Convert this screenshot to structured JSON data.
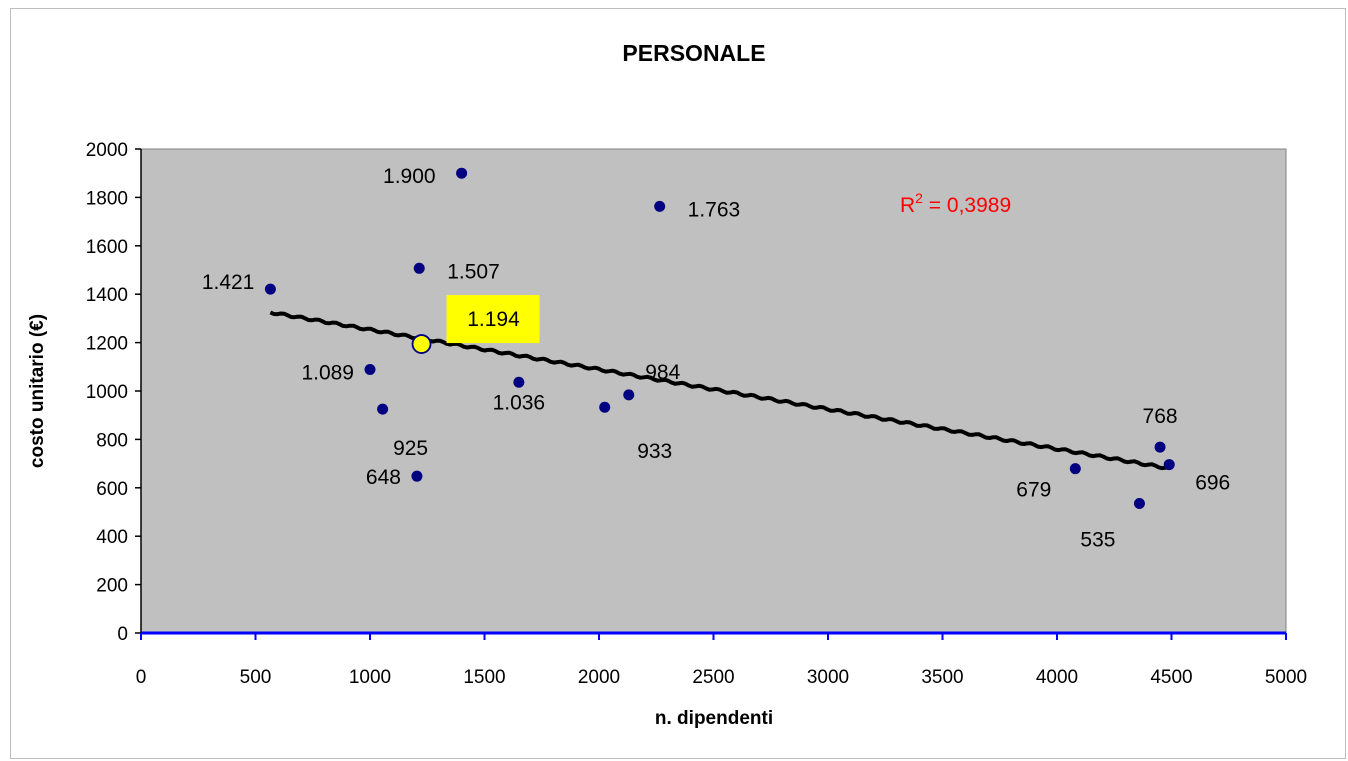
{
  "chart_data": {
    "type": "scatter",
    "title": "PERSONALE",
    "xlabel": "n. dipendenti",
    "ylabel": "costo unitario (€)",
    "xlim": [
      0,
      5000
    ],
    "ylim": [
      0,
      2000
    ],
    "x_ticks": [
      "0",
      "500",
      "1000",
      "1500",
      "2000",
      "2500",
      "3000",
      "3500",
      "4000",
      "4500",
      "5000"
    ],
    "y_ticks": [
      "0",
      "200",
      "400",
      "600",
      "800",
      "1000",
      "1200",
      "1400",
      "1600",
      "1800",
      "2000"
    ],
    "grid": false,
    "plot_background": "#c0c0c0",
    "marker_color": "#000080",
    "trend_color": "#000000",
    "x_axis_color": "#0000ff",
    "points": [
      {
        "x": 565,
        "y": 1421,
        "label": "1.421"
      },
      {
        "x": 1400,
        "y": 1900,
        "label": "1.900"
      },
      {
        "x": 2265,
        "y": 1763,
        "label": "1.763"
      },
      {
        "x": 1215,
        "y": 1507,
        "label": "1.507"
      },
      {
        "x": 1000,
        "y": 1089,
        "label": "1.089"
      },
      {
        "x": 1055,
        "y": 925,
        "label": "925"
      },
      {
        "x": 1205,
        "y": 648,
        "label": "648"
      },
      {
        "x": 1650,
        "y": 1036,
        "label": "1.036"
      },
      {
        "x": 2025,
        "y": 933,
        "label": "933"
      },
      {
        "x": 2130,
        "y": 984,
        "label": "984"
      },
      {
        "x": 4080,
        "y": 679,
        "label": "679"
      },
      {
        "x": 4360,
        "y": 535,
        "label": "535"
      },
      {
        "x": 4450,
        "y": 768,
        "label": "768"
      },
      {
        "x": 4490,
        "y": 696,
        "label": "696"
      }
    ],
    "highlight": {
      "x": 1225,
      "y": 1194,
      "label": "1.194",
      "color": "#ffff00"
    },
    "trendline": {
      "type": "linear",
      "x_start": 565,
      "y_start": 1325,
      "x_end": 4490,
      "y_end": 680
    },
    "r_squared": {
      "prefix": "R",
      "exponent": "2",
      "value": " = 0,3989",
      "color": "#ff0000"
    }
  }
}
